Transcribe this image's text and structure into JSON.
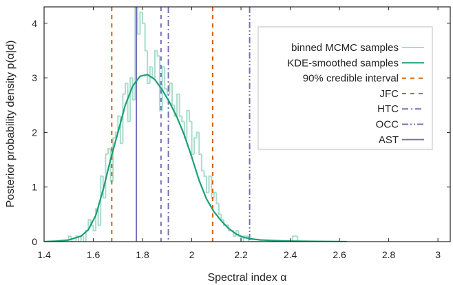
{
  "chart_data": {
    "type": "line",
    "xlabel": "Spectral index α",
    "ylabel": "Posterior probability density p(α|d)",
    "xlim": [
      1.4,
      3.05
    ],
    "ylim": [
      0,
      4.3
    ],
    "xticks": [
      1.4,
      1.6,
      1.8,
      2,
      2.2,
      2.4,
      2.6,
      2.8,
      3
    ],
    "xtick_labels": [
      "1.4",
      "1.6",
      "1.8",
      "2",
      "2.2",
      "2.4",
      "2.6",
      "2.8",
      "3"
    ],
    "yticks": [
      0,
      1,
      2,
      3,
      4
    ],
    "ytick_labels": [
      "0",
      "1",
      "2",
      "3",
      "4"
    ],
    "legend_position": "top-right",
    "legend": [
      {
        "label": "binned MCMC samples",
        "style": "solid",
        "color": "#a8ddcb"
      },
      {
        "label": "KDE-smoothed samples",
        "style": "solid",
        "color": "#1b9e77"
      },
      {
        "label": "90% credible interval",
        "style": "dashed",
        "color": "#d95f02"
      },
      {
        "label": "JFC",
        "style": "dashed",
        "color": "#7570b3"
      },
      {
        "label": "HTC",
        "style": "dashdot",
        "color": "#7570b3"
      },
      {
        "label": "OCC",
        "style": "dashdotdot",
        "color": "#7570b3"
      },
      {
        "label": "AST",
        "style": "solid",
        "color": "#7570b3"
      }
    ],
    "histogram": {
      "name": "binned MCMC samples",
      "color": "#a8ddcb",
      "bin_width": 0.01,
      "bin_starts": [
        1.45,
        1.46,
        1.47,
        1.48,
        1.49,
        1.5,
        1.51,
        1.52,
        1.53,
        1.54,
        1.55,
        1.56,
        1.57,
        1.58,
        1.59,
        1.6,
        1.61,
        1.62,
        1.63,
        1.64,
        1.65,
        1.66,
        1.67,
        1.68,
        1.69,
        1.7,
        1.71,
        1.72,
        1.73,
        1.74,
        1.75,
        1.76,
        1.77,
        1.78,
        1.79,
        1.8,
        1.81,
        1.82,
        1.83,
        1.84,
        1.85,
        1.86,
        1.87,
        1.88,
        1.89,
        1.9,
        1.91,
        1.92,
        1.93,
        1.94,
        1.95,
        1.96,
        1.97,
        1.98,
        1.99,
        2.0,
        2.01,
        2.02,
        2.03,
        2.04,
        2.05,
        2.06,
        2.07,
        2.08,
        2.09,
        2.1,
        2.11,
        2.12,
        2.13,
        2.14,
        2.15,
        2.16,
        2.17,
        2.18,
        2.19,
        2.2,
        2.21,
        2.22,
        2.23,
        2.24,
        2.25,
        2.26,
        2.27,
        2.28,
        2.29,
        2.3,
        2.31,
        2.32,
        2.33,
        2.34,
        2.35,
        2.36,
        2.37,
        2.38,
        2.39,
        2.4,
        2.41,
        2.42,
        2.43,
        2.44,
        2.45
      ],
      "heights": [
        0,
        0,
        0,
        0,
        0,
        0.1,
        0,
        0,
        0.1,
        0,
        0.1,
        0,
        0.2,
        0.4,
        0.3,
        0.2,
        0.6,
        0.3,
        1.2,
        0.8,
        1.6,
        1.7,
        1.1,
        1.9,
        2.0,
        2.3,
        1.8,
        2.7,
        2.9,
        2.2,
        3.0,
        2.6,
        4.3,
        3.8,
        4.2,
        4.0,
        3.5,
        2.9,
        3.2,
        3.0,
        3.5,
        3.4,
        2.4,
        3.2,
        2.8,
        2.7,
        2.9,
        2.5,
        2.3,
        2.7,
        2.3,
        2.2,
        1.9,
        2.4,
        2.2,
        1.6,
        1.9,
        2.0,
        1.6,
        1.3,
        1.2,
        0.9,
        1.2,
        0.8,
        0.9,
        0.7,
        0.5,
        0.4,
        0.3,
        0.3,
        0.2,
        0.2,
        0.1,
        0.2,
        0.1,
        0,
        0.1,
        0.1,
        0,
        0,
        0,
        0,
        0,
        0,
        0,
        0,
        0,
        0,
        0,
        0,
        0,
        0,
        0,
        0,
        0,
        0,
        0.1,
        0.1,
        0,
        0,
        0
      ]
    },
    "kde": {
      "name": "KDE-smoothed samples",
      "color": "#1b9e77",
      "x": [
        1.4,
        1.45,
        1.5,
        1.55,
        1.58,
        1.61,
        1.64,
        1.67,
        1.7,
        1.73,
        1.76,
        1.79,
        1.82,
        1.85,
        1.88,
        1.91,
        1.94,
        1.97,
        2.0,
        2.03,
        2.06,
        2.09,
        2.12,
        2.15,
        2.18,
        2.21,
        2.24,
        2.28,
        2.33,
        2.4,
        2.5,
        2.63
      ],
      "y": [
        0,
        0.01,
        0.03,
        0.1,
        0.22,
        0.48,
        0.95,
        1.5,
        2.0,
        2.5,
        2.85,
        3.03,
        3.06,
        2.97,
        2.78,
        2.55,
        2.28,
        1.95,
        1.55,
        1.12,
        0.78,
        0.55,
        0.38,
        0.24,
        0.14,
        0.08,
        0.05,
        0.03,
        0.02,
        0.01,
        0.005,
        0
      ]
    },
    "vlines": [
      {
        "name": "90% credible interval",
        "x": 1.675,
        "color": "#d95f02",
        "style": "dashed"
      },
      {
        "name": "90% credible interval",
        "x": 2.085,
        "color": "#d95f02",
        "style": "dashed"
      },
      {
        "name": "JFC",
        "x": 1.875,
        "color": "#7570b3",
        "style": "dashed"
      },
      {
        "name": "HTC",
        "x": 1.905,
        "color": "#7570b3",
        "style": "dashdot"
      },
      {
        "name": "OCC",
        "x": 2.235,
        "color": "#7570b3",
        "style": "dashdotdot"
      },
      {
        "name": "AST",
        "x": 1.775,
        "color": "#7570b3",
        "style": "solid"
      }
    ]
  }
}
